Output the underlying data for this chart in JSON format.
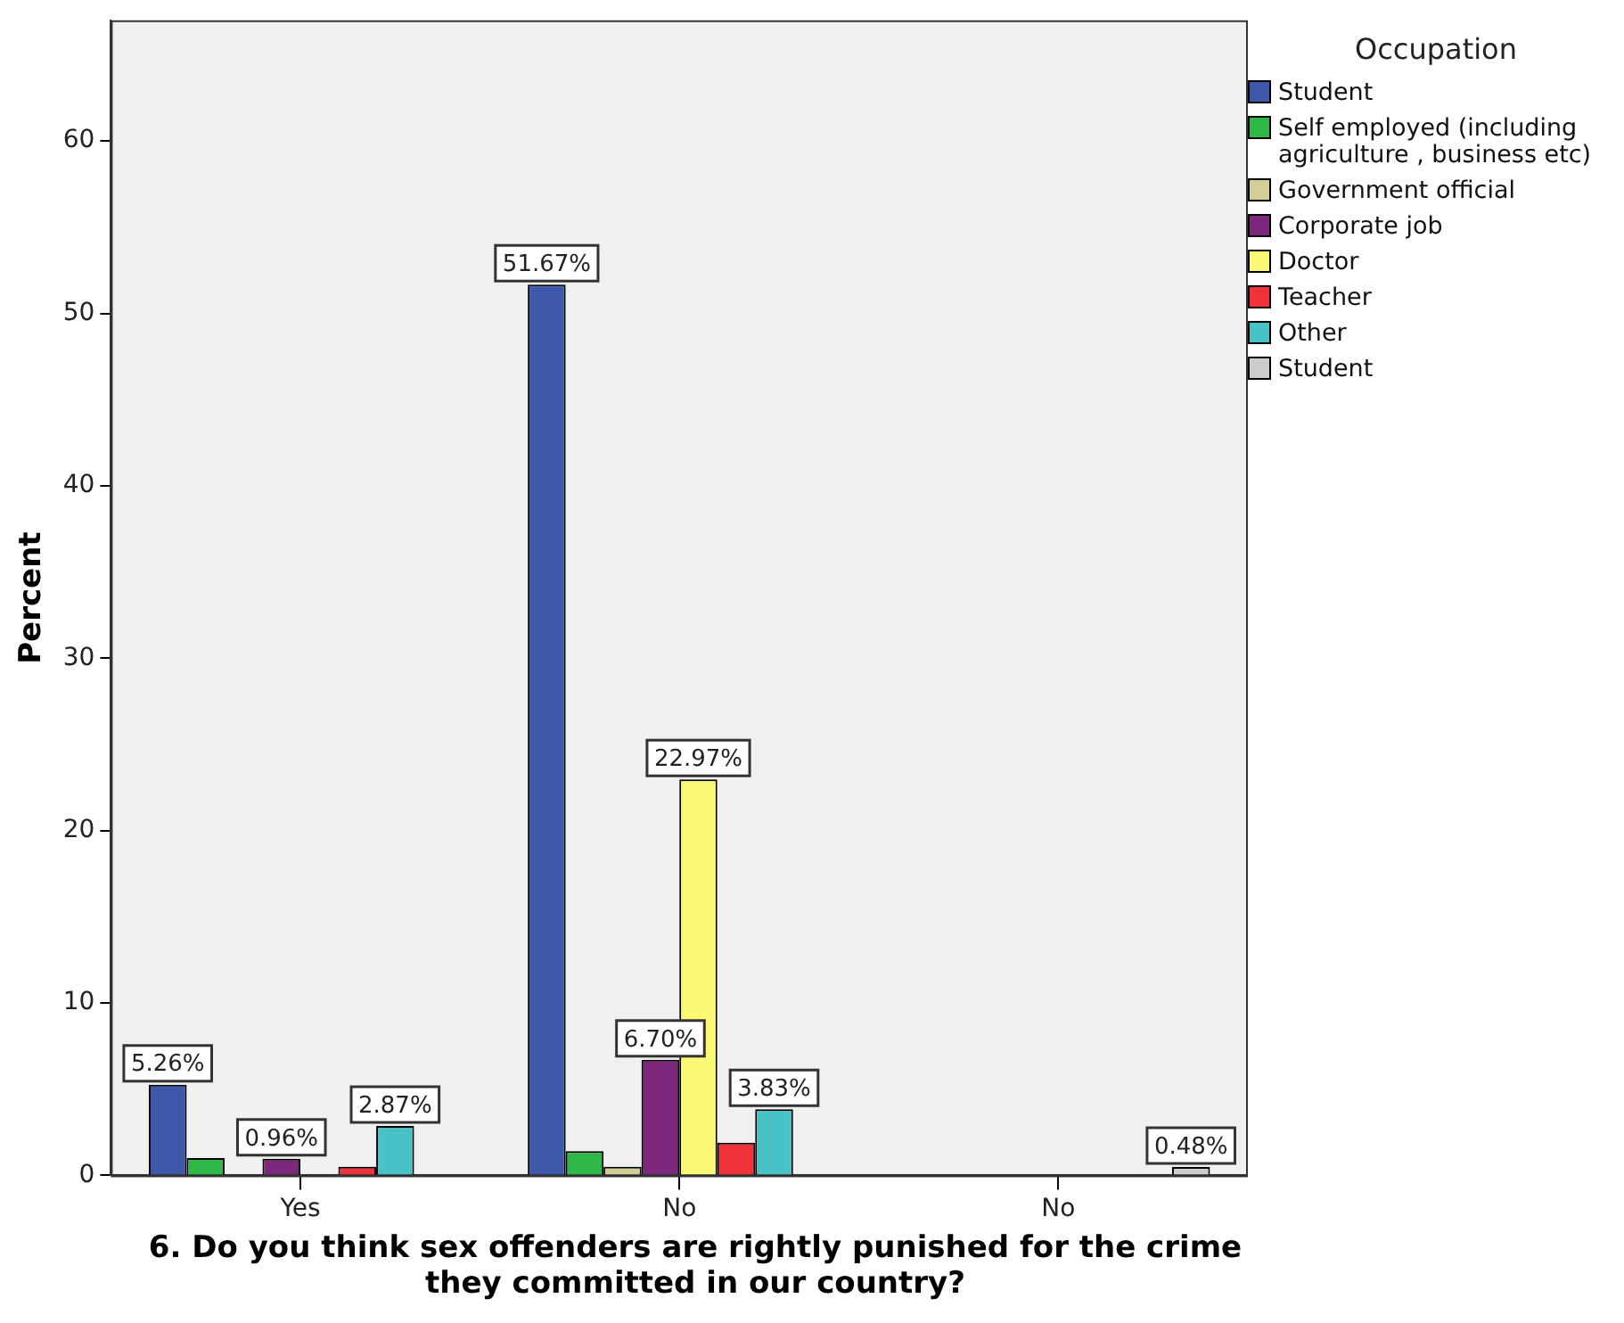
{
  "chart_data": {
    "type": "bar",
    "xlabel": "6. Do you think sex offenders are rightly punished for the crime they committed in our country?",
    "ylabel": "Percent",
    "legend_title": "Occupation",
    "legend": "right",
    "grid": false,
    "categories": [
      "Yes",
      "No",
      "No"
    ],
    "ylim": [
      0,
      67
    ],
    "yticks": [
      0,
      10,
      20,
      30,
      40,
      50,
      60
    ],
    "series": [
      {
        "name": "Student",
        "color": "#3e58ac",
        "values": [
          5.26,
          51.67,
          null
        ],
        "value_labels": [
          "5.26%",
          "51.67%",
          null
        ]
      },
      {
        "name": "Self employed (including agriculture , business etc)",
        "color": "#2eb848",
        "values": [
          1.0,
          1.4,
          null
        ]
      },
      {
        "name": "Government official",
        "color": "#d3ce97",
        "values": [
          null,
          0.5,
          null
        ]
      },
      {
        "name": "Corporate job",
        "color": "#7c287d",
        "values": [
          0.96,
          6.7,
          null
        ],
        "value_labels": [
          "0.96%",
          "6.70%",
          null
        ]
      },
      {
        "name": "Doctor",
        "color": "#fbf873",
        "values": [
          null,
          22.97,
          null
        ],
        "value_labels": [
          null,
          "22.97%",
          null
        ]
      },
      {
        "name": "Teacher",
        "color": "#ef3338",
        "values": [
          0.5,
          1.9,
          null
        ]
      },
      {
        "name": "Other",
        "color": "#48c2c5",
        "values": [
          2.87,
          3.83,
          null
        ],
        "value_labels": [
          "2.87%",
          "3.83%",
          null
        ]
      },
      {
        "name": "Student",
        "color": "#cccccc",
        "values": [
          null,
          null,
          0.48
        ],
        "value_labels": [
          null,
          null,
          "0.48%"
        ]
      }
    ]
  }
}
